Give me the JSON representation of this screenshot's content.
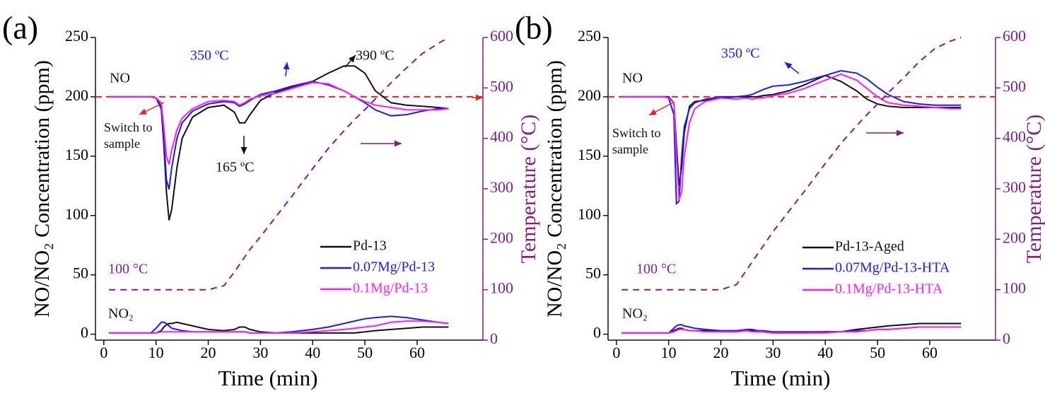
{
  "chart_data": [
    {
      "type": "line",
      "label": "(a)",
      "xlabel": "Time (min)",
      "ylabel": "NO/NO₂ Concentration (ppm)",
      "y2label": "Temperature (°C)",
      "x": [
        1,
        5,
        9,
        10,
        11,
        11.5,
        12,
        12.5,
        13,
        14,
        15,
        17,
        20,
        23,
        25,
        26,
        27,
        28,
        30,
        33,
        36,
        40,
        43,
        46,
        48,
        50,
        52,
        55,
        58,
        61,
        64,
        66
      ],
      "xlim": [
        -1.6,
        72.6
      ],
      "xticks": [
        0,
        10,
        20,
        30,
        40,
        50,
        60
      ],
      "ylim": [
        -5,
        250
      ],
      "yticks": [
        0,
        50,
        100,
        150,
        200,
        250
      ],
      "y2lim": [
        0,
        600
      ],
      "y2ticks": [
        0,
        100,
        200,
        300,
        400,
        500,
        600
      ],
      "reference": 200,
      "reference_color": "#e8231f",
      "axis2_color": "#7f1f7f",
      "series": [
        {
          "name": "Pd-13",
          "color": "#111111",
          "values": [
            200,
            200,
            200,
            199,
            190,
            160,
            120,
            96,
            105,
            140,
            165,
            183,
            191,
            193,
            187,
            178,
            178,
            185,
            197,
            204,
            208,
            213,
            220,
            226,
            226,
            220,
            205,
            195,
            193,
            192,
            191,
            190
          ],
          "values_no2": [
            1,
            1,
            1,
            1,
            3,
            6,
            8,
            9,
            9,
            10,
            9,
            7,
            4,
            3,
            4,
            6,
            6,
            4,
            2,
            1,
            1,
            1,
            1,
            1,
            1,
            2,
            3,
            4,
            5,
            6,
            6,
            6
          ]
        },
        {
          "name": "0.07Mg/Pd-13",
          "color": "#1a1aff",
          "values": [
            200,
            200,
            200,
            199,
            192,
            165,
            130,
            122,
            140,
            165,
            178,
            188,
            194,
            196,
            195,
            192,
            194,
            197,
            202,
            205,
            209,
            213,
            210,
            205,
            200,
            195,
            189,
            184,
            185,
            188,
            190,
            190
          ],
          "values_no2": [
            1,
            1,
            1,
            5,
            10,
            10,
            9,
            7,
            5,
            4,
            3,
            2,
            2,
            2,
            2,
            2,
            2,
            1,
            1,
            1,
            2,
            4,
            6,
            9,
            11,
            13,
            14,
            15,
            14,
            12,
            10,
            9
          ]
        },
        {
          "name": "0.1Mg/Pd-13",
          "color": "#ff1aff",
          "values": [
            200,
            200,
            200,
            199,
            195,
            175,
            150,
            143,
            155,
            172,
            182,
            190,
            196,
            197,
            196,
            193,
            195,
            198,
            201,
            203,
            207,
            212,
            211,
            205,
            200,
            196,
            193,
            191,
            189,
            189,
            189,
            190
          ],
          "values_no2": [
            1,
            1,
            1,
            1,
            2,
            2,
            2,
            2,
            2,
            2,
            2,
            2,
            2,
            2,
            2,
            2,
            2,
            1,
            1,
            1,
            1,
            2,
            3,
            4,
            5,
            6,
            7,
            10,
            11,
            11,
            10,
            9
          ]
        },
        {
          "axis": "y2",
          "color": "#7f1f7f",
          "dashed": true,
          "values": [
            100,
            100,
            100,
            100,
            100,
            100,
            100,
            100,
            100,
            100,
            100,
            100,
            100,
            108,
            135,
            150,
            165,
            180,
            205,
            245,
            285,
            340,
            380,
            415,
            437,
            457,
            478,
            510,
            540,
            568,
            588,
            600
          ]
        }
      ],
      "annotations": {
        "no": "NO",
        "no2": "NO₂",
        "switch": [
          "Switch to",
          "sample"
        ],
        "t165": "165 ºC",
        "t350": "350 ºC",
        "t390": "390 ºC",
        "t100": "100 °C"
      }
    },
    {
      "type": "line",
      "label": "(b)",
      "xlabel": "Time (min)",
      "ylabel": "NO/NO₂ Concentration (ppm)",
      "y2label": "Temperature (°C)",
      "x": [
        1,
        5,
        9,
        10,
        11,
        11.5,
        12,
        12.5,
        13,
        14,
        15,
        17,
        20,
        23,
        25,
        26,
        27,
        28,
        30,
        33,
        36,
        40,
        43,
        46,
        48,
        50,
        52,
        55,
        58,
        61,
        64,
        66
      ],
      "xlim": [
        -1.6,
        72.6
      ],
      "xticks": [
        0,
        10,
        20,
        30,
        40,
        50,
        60
      ],
      "ylim": [
        -5,
        250
      ],
      "yticks": [
        0,
        50,
        100,
        150,
        200,
        250
      ],
      "y2lim": [
        0,
        600
      ],
      "y2ticks": [
        0,
        100,
        200,
        300,
        400,
        500,
        600
      ],
      "reference": 200,
      "reference_color": "#e8231f",
      "axis2_color": "#7f1f7f",
      "series": [
        {
          "name": "Pd-13-Aged",
          "color": "#111111",
          "values": [
            200,
            200,
            200,
            200,
            195,
            160,
            125,
            140,
            170,
            192,
            196,
            197,
            199,
            200,
            200,
            200,
            200,
            201,
            202,
            205,
            210,
            218,
            213,
            205,
            198,
            194,
            192,
            191,
            191,
            191,
            191,
            191
          ],
          "values_no2": [
            1,
            1,
            1,
            1,
            3,
            4,
            5,
            5,
            4,
            3,
            3,
            3,
            2,
            2,
            3,
            3,
            2,
            2,
            1,
            1,
            1,
            2,
            2,
            4,
            5,
            6,
            7,
            8,
            9,
            9,
            9,
            9
          ]
        },
        {
          "name": "0.07Mg/Pd-13-HTA",
          "color": "#1a1aff",
          "values": [
            200,
            200,
            200,
            199,
            185,
            110,
            112,
            150,
            175,
            190,
            195,
            198,
            200,
            200,
            201,
            202,
            204,
            206,
            209,
            210,
            213,
            218,
            222,
            220,
            215,
            208,
            202,
            196,
            194,
            193,
            193,
            193
          ],
          "values_no2": [
            1,
            1,
            1,
            1,
            5,
            7,
            8,
            8,
            7,
            6,
            5,
            4,
            3,
            3,
            4,
            4,
            3,
            3,
            2,
            2,
            2,
            2,
            2,
            3,
            3,
            4,
            4,
            5,
            6,
            6,
            6,
            6
          ]
        },
        {
          "name": "0.1Mg/Pd-13-HTA",
          "color": "#ff1aff",
          "values": [
            200,
            200,
            200,
            199,
            195,
            150,
            113,
            120,
            150,
            178,
            190,
            196,
            199,
            198,
            199,
            198,
            199,
            199,
            201,
            203,
            207,
            214,
            219,
            214,
            207,
            200,
            195,
            193,
            192,
            191,
            190,
            190
          ],
          "values_no2": [
            1,
            1,
            1,
            1,
            2,
            3,
            4,
            4,
            4,
            3,
            3,
            2,
            2,
            2,
            3,
            2,
            2,
            2,
            1,
            1,
            1,
            1,
            2,
            2,
            3,
            4,
            4,
            5,
            6,
            6,
            6,
            6
          ]
        },
        {
          "axis": "y2",
          "color": "#7f1f7f",
          "dashed": true,
          "values": [
            100,
            100,
            100,
            100,
            100,
            100,
            100,
            100,
            100,
            100,
            100,
            100,
            100,
            110,
            140,
            155,
            170,
            185,
            215,
            255,
            295,
            350,
            390,
            425,
            447,
            468,
            490,
            520,
            552,
            578,
            593,
            600
          ]
        }
      ],
      "annotations": {
        "no": "NO",
        "no2": "NO₂",
        "switch": [
          "Switch to",
          "sample"
        ],
        "t350": "350 ºC",
        "t100": "100 °C"
      }
    }
  ]
}
